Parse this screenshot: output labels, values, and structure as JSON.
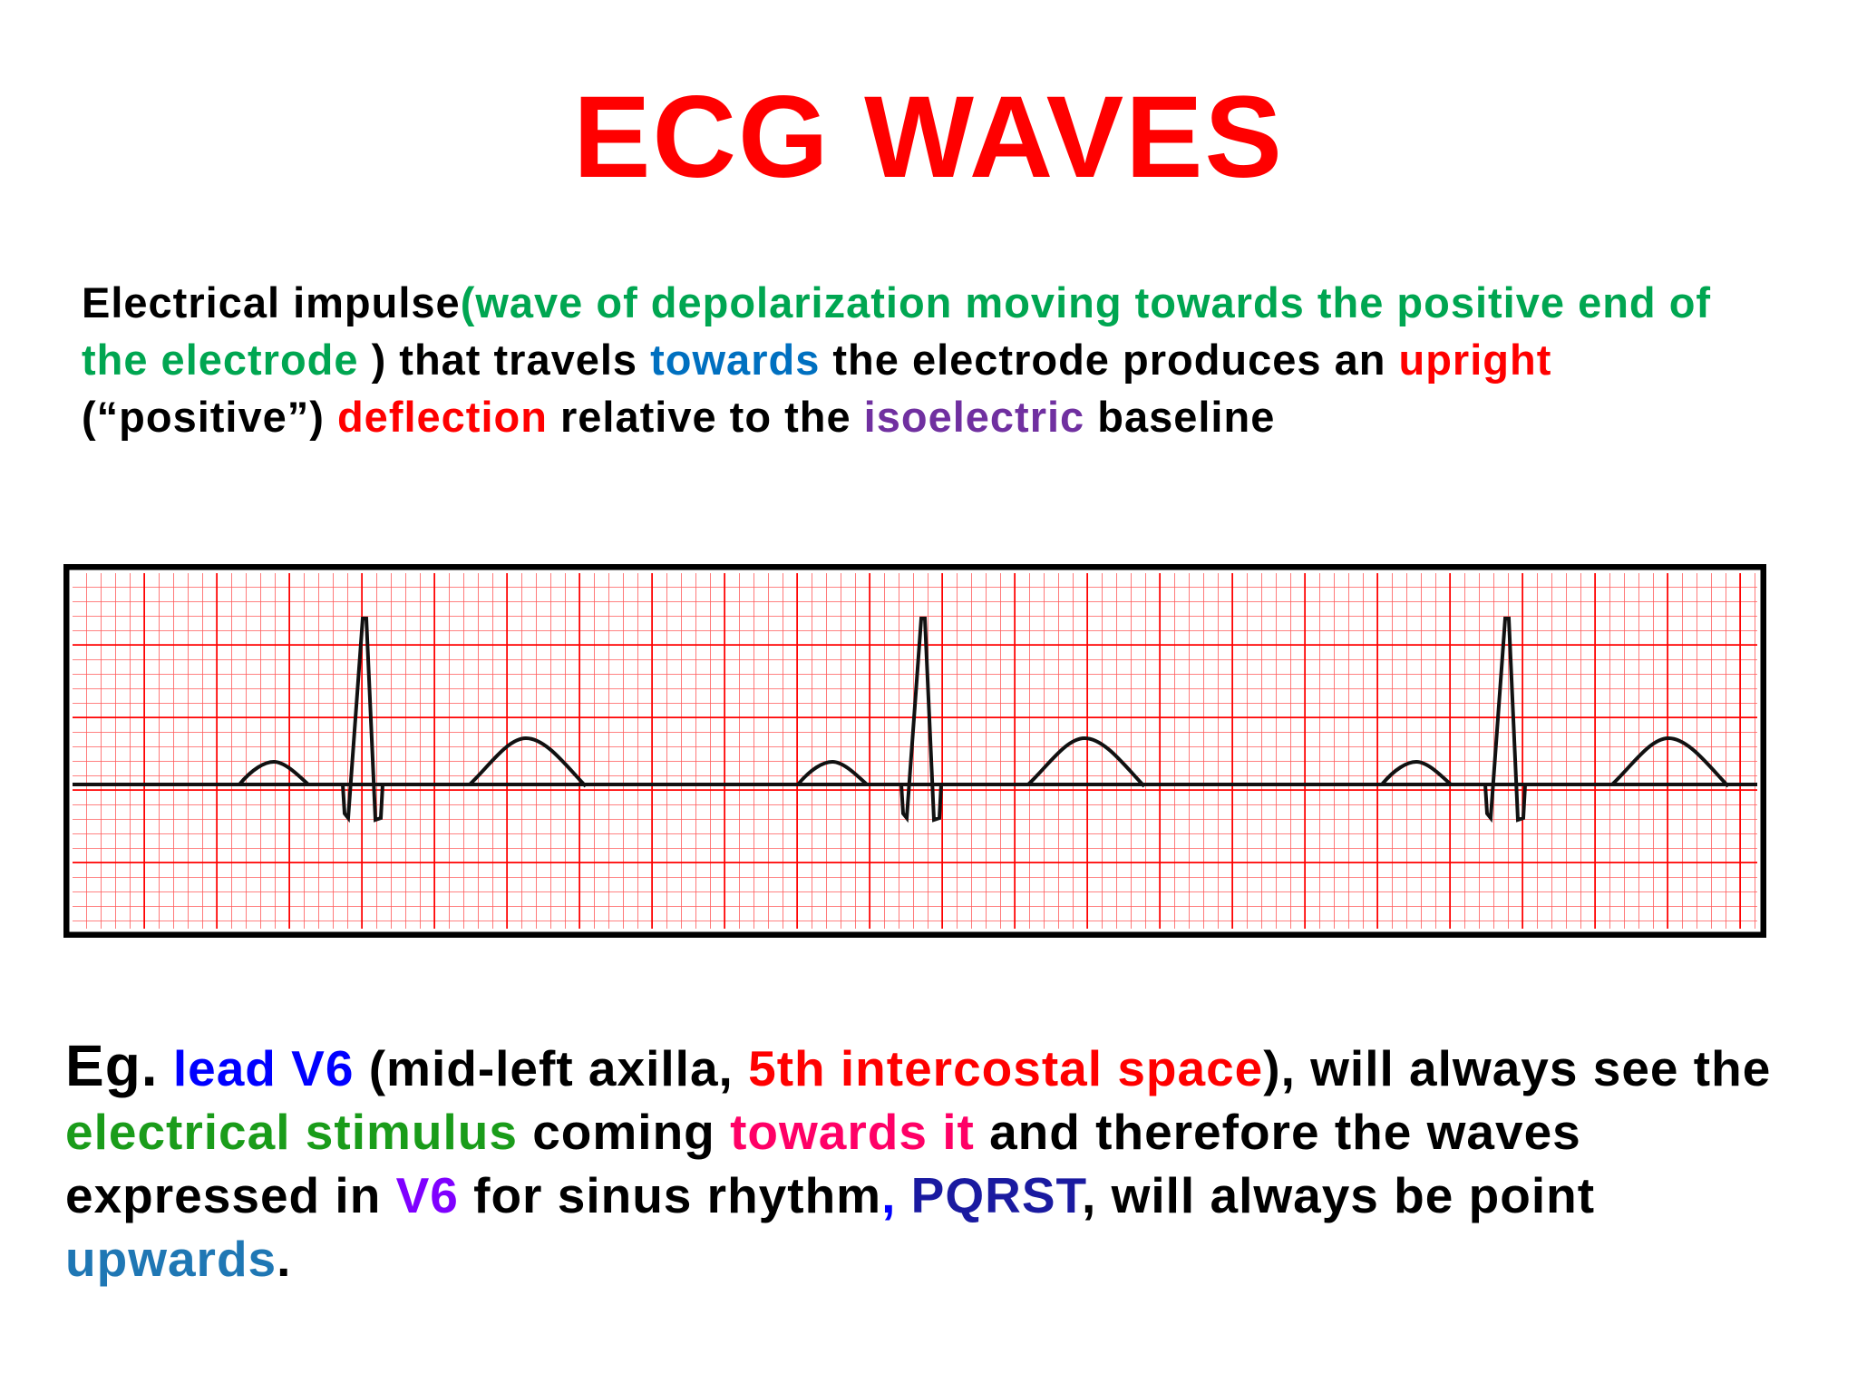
{
  "title": "ECG WAVES",
  "paragraph1": [
    "Electrical impulse",
    "(wave of depolarization moving towards the positive end of the electrode ",
    ") that travels ",
    "towards",
    " the electrode produces an ",
    "upright",
    " (“positive”) ",
    "deflection",
    " relative to the ",
    "isoelectric",
    " baseline"
  ],
  "paragraph2": [
    "Eg.",
    " lead V6",
    " (mid-left axilla, ",
    "5th intercostal space",
    "), will always see the ",
    "electrical stimulus",
    " coming ",
    "towards it",
    " and therefore the waves expressed in ",
    "V6",
    " for sinus rhythm",
    ",",
    " PQRST",
    ", will always be point ",
    "upwards",
    "."
  ]
}
